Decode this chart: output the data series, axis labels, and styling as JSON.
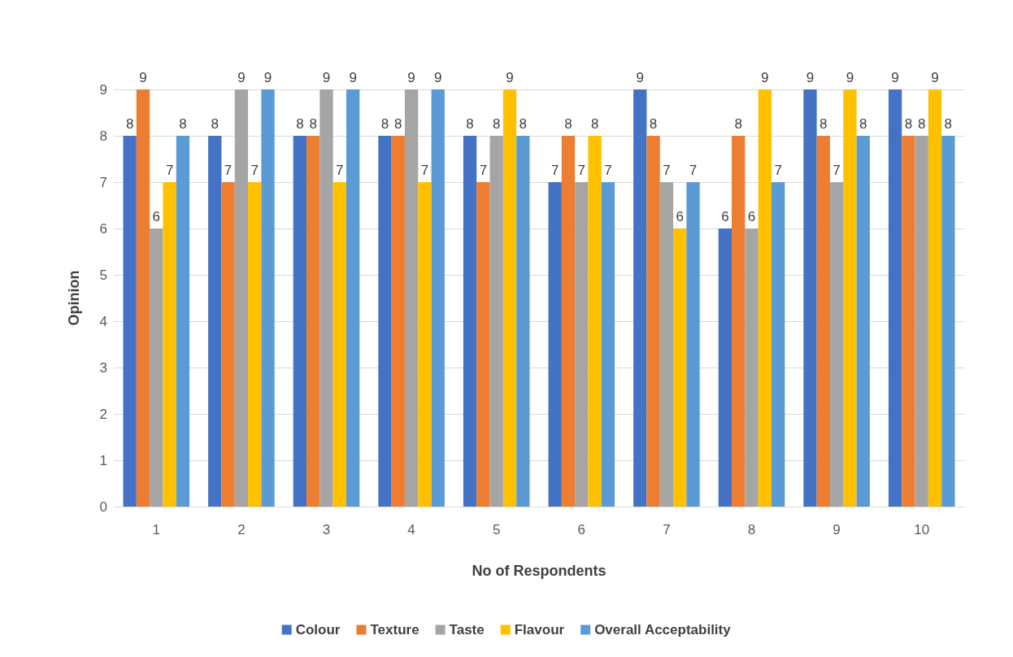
{
  "chart_data": {
    "type": "bar",
    "xlabel": "No of Respondents",
    "ylabel": "Opinion",
    "categories": [
      "1",
      "2",
      "3",
      "4",
      "5",
      "6",
      "7",
      "8",
      "9",
      "10"
    ],
    "series": [
      {
        "name": "Colour",
        "color": "#4472c4",
        "values": [
          8,
          8,
          8,
          8,
          8,
          7,
          9,
          6,
          9,
          9
        ]
      },
      {
        "name": "Texture",
        "color": "#ed7d31",
        "values": [
          9,
          7,
          8,
          8,
          7,
          8,
          8,
          8,
          8,
          8
        ]
      },
      {
        "name": "Taste",
        "color": "#a5a5a5",
        "values": [
          6,
          9,
          9,
          9,
          8,
          7,
          7,
          6,
          7,
          8
        ]
      },
      {
        "name": "Flavour",
        "color": "#ffc000",
        "values": [
          7,
          7,
          7,
          7,
          9,
          8,
          6,
          9,
          9,
          9
        ]
      },
      {
        "name": "Overall Acceptability",
        "color": "#5b9bd5",
        "values": [
          8,
          9,
          9,
          9,
          8,
          7,
          7,
          7,
          8,
          8
        ]
      }
    ],
    "ylim": [
      0,
      9
    ],
    "yticks": [
      0,
      1,
      2,
      3,
      4,
      5,
      6,
      7,
      8,
      9
    ],
    "grid": "y",
    "legend": "bottom",
    "data_labels": true
  }
}
